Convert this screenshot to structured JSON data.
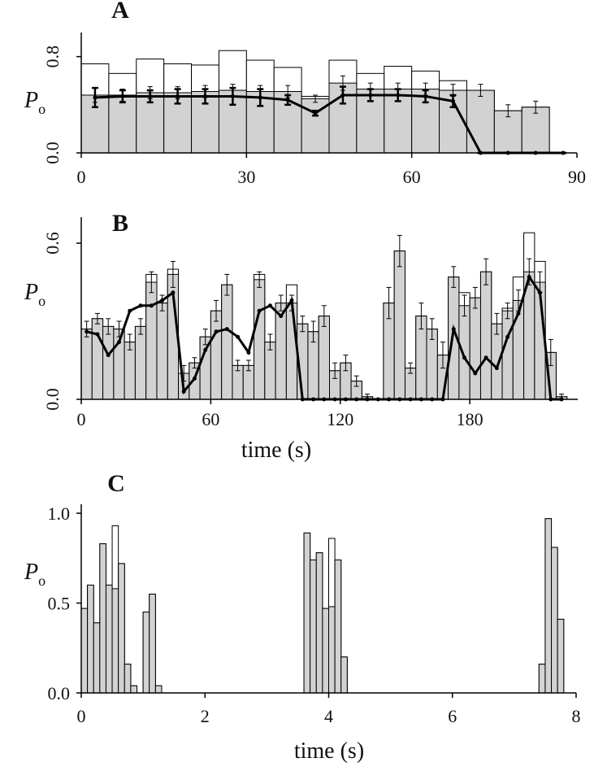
{
  "chart_data": [
    {
      "type": "histogram",
      "label": "A",
      "ylabel": "P",
      "ylabel_sub": "o",
      "bins": [
        0,
        5,
        10,
        15,
        20,
        25,
        30,
        35,
        40,
        45,
        50,
        55,
        60,
        65,
        70,
        75,
        80,
        85
      ],
      "series": [
        {
          "color": "#ffffff",
          "values": [
            0.74,
            0.66,
            0.78,
            0.74,
            0.73,
            0.85,
            0.77,
            0.71,
            0.47,
            0.77,
            0.66,
            0.72,
            0.68,
            0.6,
            0.52,
            0.35,
            0.38
          ]
        },
        {
          "color": "#d2d2d2",
          "values": [
            0.48,
            0.48,
            0.5,
            0.5,
            0.51,
            0.52,
            0.51,
            0.51,
            0.45,
            0.58,
            0.53,
            0.53,
            0.53,
            0.52,
            0.52,
            0.35,
            0.38
          ],
          "errors": [
            0.06,
            0.05,
            0.05,
            0.05,
            0.05,
            0.05,
            0.05,
            0.05,
            0.03,
            0.06,
            0.05,
            0.05,
            0.05,
            0.05,
            0.05,
            0.05,
            0.05
          ]
        }
      ],
      "line": {
        "color": "#000000",
        "x": [
          2.5,
          7.5,
          12.5,
          17.5,
          22.5,
          27.5,
          32.5,
          37.5,
          42.5,
          47.5,
          52.5,
          57.5,
          62.5,
          67.5,
          72.5,
          77.5,
          82.5,
          87.5
        ],
        "values": [
          0.46,
          0.47,
          0.47,
          0.47,
          0.47,
          0.47,
          0.46,
          0.44,
          0.33,
          0.48,
          0.48,
          0.48,
          0.47,
          0.43,
          0,
          0,
          0,
          0
        ],
        "errors": [
          0.08,
          0.05,
          0.05,
          0.06,
          0.06,
          0.07,
          0.07,
          0.04,
          0.02,
          0.07,
          0.05,
          0.05,
          0.05,
          0.05,
          0,
          0,
          0,
          0
        ]
      },
      "xlim": [
        0,
        90
      ],
      "ylim": [
        0,
        1.0
      ],
      "xticks": [
        0,
        30,
        60,
        90
      ],
      "yticks": [
        {
          "value": 0,
          "label": "0.0"
        },
        {
          "value": 0.8,
          "label": "0.8"
        }
      ]
    },
    {
      "type": "histogram",
      "label": "B",
      "ylabel": "P",
      "ylabel_sub": "o",
      "xlabel": "time (s)",
      "bins": [
        0,
        5,
        10,
        15,
        20,
        25,
        30,
        35,
        40,
        45,
        50,
        55,
        60,
        65,
        70,
        75,
        80,
        85,
        90,
        95,
        100,
        105,
        110,
        115,
        120,
        125,
        130,
        135,
        140,
        145,
        150,
        155,
        160,
        165,
        170,
        175,
        180,
        185,
        190,
        195,
        200,
        205,
        210,
        215,
        220,
        225
      ],
      "series": [
        {
          "color": "#ffffff",
          "values": [
            0.27,
            0.31,
            0.28,
            0.27,
            0.22,
            0.28,
            0.48,
            0.37,
            0.5,
            0.1,
            0.14,
            0.24,
            0.34,
            0.44,
            0.13,
            0.13,
            0.48,
            0.22,
            0.37,
            0.44,
            0.29,
            0.26,
            0.32,
            0.11,
            0.14,
            0.07,
            0.01,
            0,
            0.37,
            0.57,
            0.12,
            0.32,
            0.27,
            0.17,
            0.47,
            0.41,
            0.39,
            0.49,
            0.29,
            0.35,
            0.47,
            0.64,
            0.53,
            0.18,
            0.01
          ]
        },
        {
          "color": "#d2d2d2",
          "values": [
            0.27,
            0.31,
            0.28,
            0.27,
            0.22,
            0.28,
            0.45,
            0.37,
            0.48,
            0.1,
            0.14,
            0.24,
            0.34,
            0.44,
            0.13,
            0.13,
            0.46,
            0.22,
            0.37,
            0.37,
            0.29,
            0.26,
            0.32,
            0.11,
            0.14,
            0.07,
            0.01,
            0,
            0.37,
            0.57,
            0.12,
            0.32,
            0.27,
            0.17,
            0.47,
            0.36,
            0.39,
            0.49,
            0.29,
            0.34,
            0.38,
            0.49,
            0.45,
            0.18,
            0.01
          ],
          "errors": [
            0.03,
            0.02,
            0.03,
            0.03,
            0.03,
            0.03,
            0.04,
            0.03,
            0.05,
            0.03,
            0.02,
            0.03,
            0.04,
            0.04,
            0.02,
            0.02,
            0.03,
            0.03,
            0.03,
            0.03,
            0.03,
            0.04,
            0.04,
            0.03,
            0.03,
            0.02,
            0.01,
            0,
            0.06,
            0.06,
            0.02,
            0.05,
            0.04,
            0.05,
            0.04,
            0.04,
            0.04,
            0.05,
            0.04,
            0.03,
            0.04,
            0.05,
            0.04,
            0.05,
            0.01
          ]
        }
      ],
      "line": {
        "color": "#000000",
        "x": [
          2.5,
          7.5,
          12.5,
          17.5,
          22.5,
          27.5,
          32.5,
          37.5,
          42.5,
          47.5,
          52.5,
          57.5,
          62.5,
          67.5,
          72.5,
          77.5,
          82.5,
          87.5,
          92.5,
          97.5,
          102.5,
          107.5,
          112.5,
          117.5,
          122.5,
          127.5,
          132.5,
          137.5,
          142.5,
          147.5,
          152.5,
          157.5,
          162.5,
          167.5,
          172.5,
          177.5,
          182.5,
          187.5,
          192.5,
          197.5,
          202.5,
          207.5,
          212.5,
          217.5,
          222.5
        ],
        "values": [
          0.26,
          0.25,
          0.17,
          0.22,
          0.34,
          0.36,
          0.36,
          0.38,
          0.41,
          0.03,
          0.08,
          0.19,
          0.26,
          0.27,
          0.24,
          0.18,
          0.34,
          0.36,
          0.32,
          0.38,
          0,
          0,
          0,
          0,
          0,
          0,
          0,
          0,
          0,
          0,
          0,
          0,
          0,
          0,
          0.27,
          0.16,
          0.1,
          0.16,
          0.12,
          0.24,
          0.33,
          0.47,
          0.41,
          0,
          0
        ]
      },
      "xlim": [
        0,
        230
      ],
      "ylim": [
        0,
        0.7
      ],
      "xticks": [
        0,
        60,
        120,
        180
      ],
      "yticks": [
        {
          "value": 0,
          "label": "0.0"
        },
        {
          "value": 0.6,
          "label": "0.6"
        }
      ]
    },
    {
      "type": "histogram",
      "label": "C",
      "ylabel": "P",
      "ylabel_sub": "o",
      "xlabel": "time (s)",
      "bins": [
        0,
        0.1,
        0.2,
        0.3,
        0.4,
        0.5,
        0.6,
        0.7,
        0.8,
        0.9,
        1.0,
        1.1,
        1.2,
        1.3,
        1.4,
        1.5,
        1.6,
        1.7,
        1.8,
        1.9,
        2.0,
        2.1,
        2.2,
        2.3,
        2.4,
        2.5,
        2.6,
        2.7,
        2.8,
        2.9,
        3.0,
        3.1,
        3.2,
        3.3,
        3.4,
        3.5,
        3.6,
        3.7,
        3.8,
        3.9,
        4.0,
        4.1,
        4.2,
        4.3,
        4.4,
        4.5,
        4.6,
        4.7,
        4.8,
        4.9,
        5.0,
        5.1,
        5.2,
        5.3,
        5.4,
        5.5,
        5.6,
        5.7,
        5.8,
        5.9,
        6.0,
        6.1,
        6.2,
        6.3,
        6.4,
        6.5,
        6.6,
        6.7,
        6.8,
        6.9,
        7.0,
        7.1,
        7.2,
        7.3,
        7.4,
        7.5,
        7.6,
        7.7,
        7.8
      ],
      "series": [
        {
          "color": "#ffffff",
          "values": [
            0.47,
            0.6,
            0.39,
            0.83,
            0.6,
            0.93,
            0.72,
            0.16,
            0.04,
            0,
            0.45,
            0.55,
            0.04,
            0,
            0,
            0,
            0,
            0,
            0,
            0,
            0,
            0,
            0,
            0,
            0,
            0,
            0,
            0,
            0,
            0,
            0,
            0,
            0,
            0,
            0,
            0,
            0.89,
            0.74,
            0.78,
            0.47,
            0.86,
            0.74,
            0.2,
            0,
            0,
            0,
            0,
            0,
            0,
            0,
            0,
            0,
            0,
            0,
            0,
            0,
            0,
            0,
            0,
            0,
            0,
            0,
            0,
            0,
            0,
            0,
            0,
            0,
            0,
            0,
            0,
            0,
            0,
            0,
            0.16,
            0.97,
            0.81,
            0.41
          ]
        },
        {
          "color": "#d2d2d2",
          "values": [
            0.47,
            0.6,
            0.39,
            0.83,
            0.6,
            0.58,
            0.72,
            0.16,
            0.04,
            0,
            0.45,
            0.55,
            0.04,
            0,
            0,
            0,
            0,
            0,
            0,
            0,
            0,
            0,
            0,
            0,
            0,
            0,
            0,
            0,
            0,
            0,
            0,
            0,
            0,
            0,
            0,
            0,
            0.89,
            0.74,
            0.78,
            0.47,
            0.48,
            0.74,
            0.2,
            0,
            0,
            0,
            0,
            0,
            0,
            0,
            0,
            0,
            0,
            0,
            0,
            0,
            0,
            0,
            0,
            0,
            0,
            0,
            0,
            0,
            0,
            0,
            0,
            0,
            0,
            0,
            0,
            0,
            0,
            0,
            0.16,
            0.97,
            0.81,
            0.41
          ]
        }
      ],
      "xlim": [
        0,
        8
      ],
      "ylim": [
        0,
        1.05
      ],
      "xticks": [
        0,
        2,
        4,
        6,
        8
      ],
      "yticks": [
        {
          "value": 0,
          "label": "0.0"
        },
        {
          "value": 0.5,
          "label": "0.5"
        },
        {
          "value": 1.0,
          "label": "1.0"
        }
      ]
    }
  ]
}
